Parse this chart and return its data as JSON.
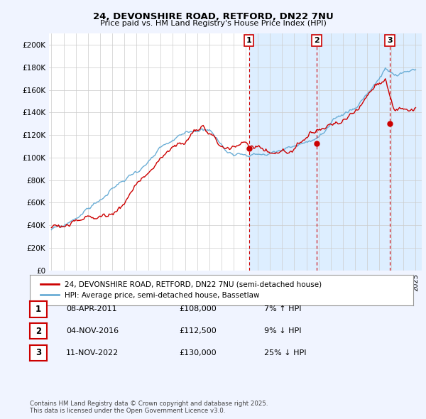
{
  "title": "24, DEVONSHIRE ROAD, RETFORD, DN22 7NU",
  "subtitle": "Price paid vs. HM Land Registry's House Price Index (HPI)",
  "ylim": [
    0,
    210000
  ],
  "yticks": [
    0,
    20000,
    40000,
    60000,
    80000,
    100000,
    120000,
    140000,
    160000,
    180000,
    200000
  ],
  "ytick_labels": [
    "£0",
    "£20K",
    "£40K",
    "£60K",
    "£80K",
    "£100K",
    "£120K",
    "£140K",
    "£160K",
    "£180K",
    "£200K"
  ],
  "hpi_color": "#6baed6",
  "hpi_fill_color": "#ddeeff",
  "price_color": "#cc0000",
  "background_color": "#f0f4ff",
  "plot_bg_color": "#ffffff",
  "shade_from_year": 2011.27,
  "sale_years": [
    2011.27,
    2016.84,
    2022.87
  ],
  "sale_prices": [
    108000,
    112500,
    130000
  ],
  "sale_labels": [
    "1",
    "2",
    "3"
  ],
  "legend_entries": [
    {
      "label": "24, DEVONSHIRE ROAD, RETFORD, DN22 7NU (semi-detached house)",
      "color": "#cc0000"
    },
    {
      "label": "HPI: Average price, semi-detached house, Bassetlaw",
      "color": "#6baed6"
    }
  ],
  "table_rows": [
    {
      "num": "1",
      "date": "08-APR-2011",
      "price": "£108,000",
      "hpi": "7% ↑ HPI"
    },
    {
      "num": "2",
      "date": "04-NOV-2016",
      "price": "£112,500",
      "hpi": "9% ↓ HPI"
    },
    {
      "num": "3",
      "date": "11-NOV-2022",
      "price": "£130,000",
      "hpi": "25% ↓ HPI"
    }
  ],
  "footer": "Contains HM Land Registry data © Crown copyright and database right 2025.\nThis data is licensed under the Open Government Licence v3.0.",
  "x_start_year": 1995,
  "x_end_year": 2025
}
